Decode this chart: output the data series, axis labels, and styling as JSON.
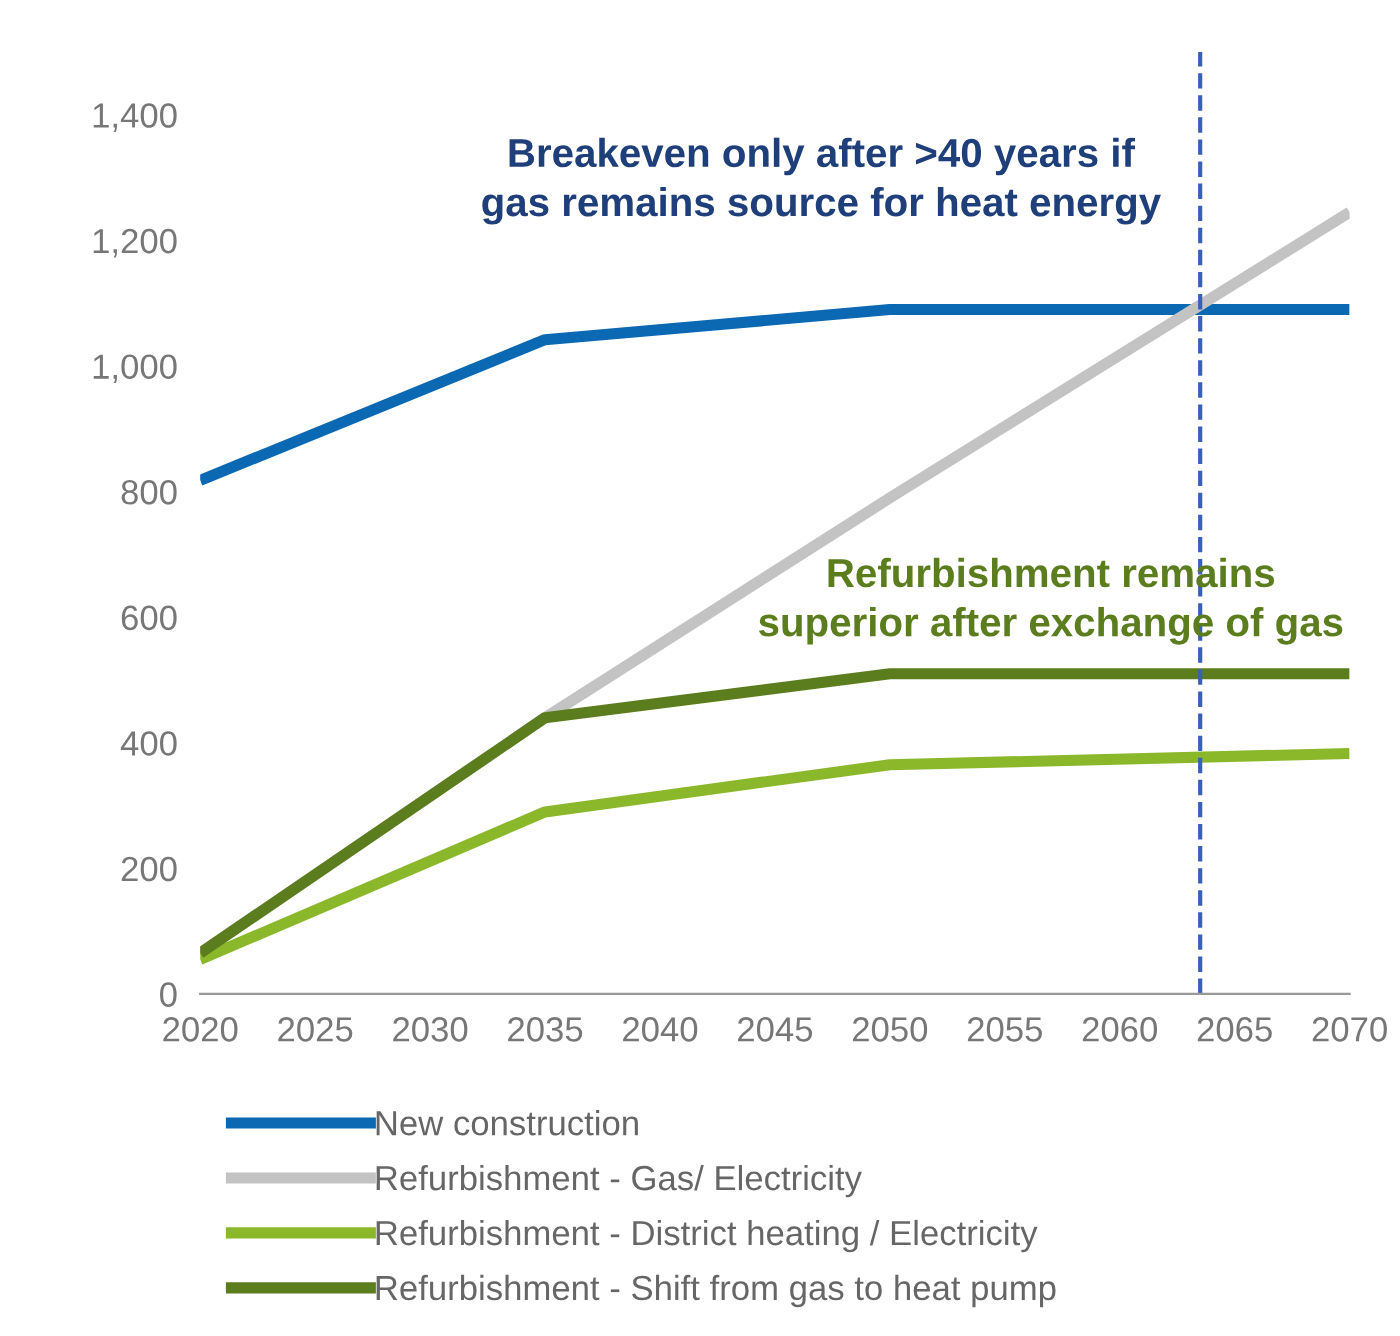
{
  "chart_data": {
    "type": "line",
    "x": [
      2020,
      2035,
      2050,
      2070
    ],
    "series": [
      {
        "name": "New construction",
        "color": "#0b68b3",
        "values": [
          818,
          1042,
          1090,
          1090
        ]
      },
      {
        "name": "Refurbishment - Gas/ Electricity",
        "color": "#c3c3c3",
        "values": [
          65,
          440,
          790,
          1245
        ]
      },
      {
        "name": "Refurbishment - District heating / Electricity",
        "color": "#8bb82a",
        "values": [
          55,
          290,
          365,
          383
        ]
      },
      {
        "name": "Refurbishment - Shift from gas to heat pump",
        "color": "#5c7d1e",
        "values": [
          65,
          440,
          510,
          510
        ]
      }
    ],
    "xlim": [
      2020,
      2070
    ],
    "xticks": [
      2020,
      2025,
      2030,
      2035,
      2040,
      2045,
      2050,
      2055,
      2060,
      2065,
      2070
    ],
    "ylim": [
      0,
      1500
    ],
    "yticks": [
      {
        "value": 0,
        "label": "0"
      },
      {
        "value": 200,
        "label": "200"
      },
      {
        "value": 400,
        "label": "400"
      },
      {
        "value": 600,
        "label": "600"
      },
      {
        "value": 800,
        "label": "800"
      },
      {
        "value": 1000,
        "label": "1,000"
      },
      {
        "value": 1200,
        "label": "1,200"
      },
      {
        "value": 1400,
        "label": "1,400"
      }
    ],
    "ref_lines": [
      {
        "axis": "x",
        "value": 2063.5,
        "color": "#3a5fb8",
        "line_style": "dashed"
      }
    ],
    "annotations": [
      "Breakeven only after >40 years if\ngas remains source for heat energy",
      "Refurbishment remains\nsuperior after exchange of gas"
    ],
    "grid": false,
    "legend": "bottom",
    "marker": "none",
    "line_style": "solid"
  }
}
